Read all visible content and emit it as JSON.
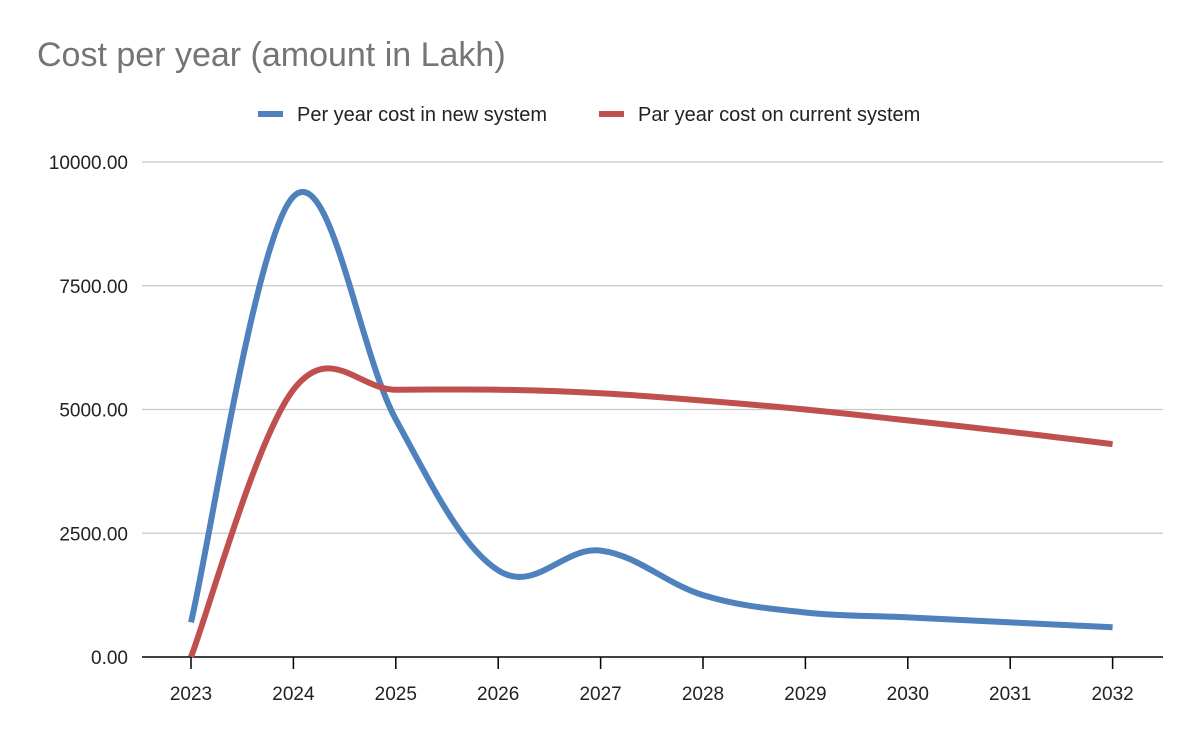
{
  "chart_data": {
    "type": "line",
    "title": "Cost per year (amount in Lakh)",
    "xlabel": "",
    "ylabel": "",
    "categories": [
      "2023",
      "2024",
      "2025",
      "2026",
      "2027",
      "2028",
      "2029",
      "2030",
      "2031",
      "2032"
    ],
    "series": [
      {
        "name": "Per year cost in new system",
        "color": "#4F81BD",
        "values": [
          700,
          9300,
          4800,
          1750,
          2150,
          1250,
          900,
          800,
          700,
          600
        ]
      },
      {
        "name": "Par year cost on current system",
        "color": "#C0504D",
        "values": [
          0,
          5400,
          5400,
          5400,
          5330,
          5180,
          5000,
          4780,
          4550,
          4300
        ]
      }
    ],
    "ylim": [
      0,
      10000
    ],
    "y_ticks": [
      "0.00",
      "2500.00",
      "5000.00",
      "7500.00",
      "10000.00"
    ],
    "y_tick_values": [
      0,
      2500,
      5000,
      7500,
      10000
    ],
    "grid": true,
    "legend": "top-center",
    "smooth": true
  }
}
